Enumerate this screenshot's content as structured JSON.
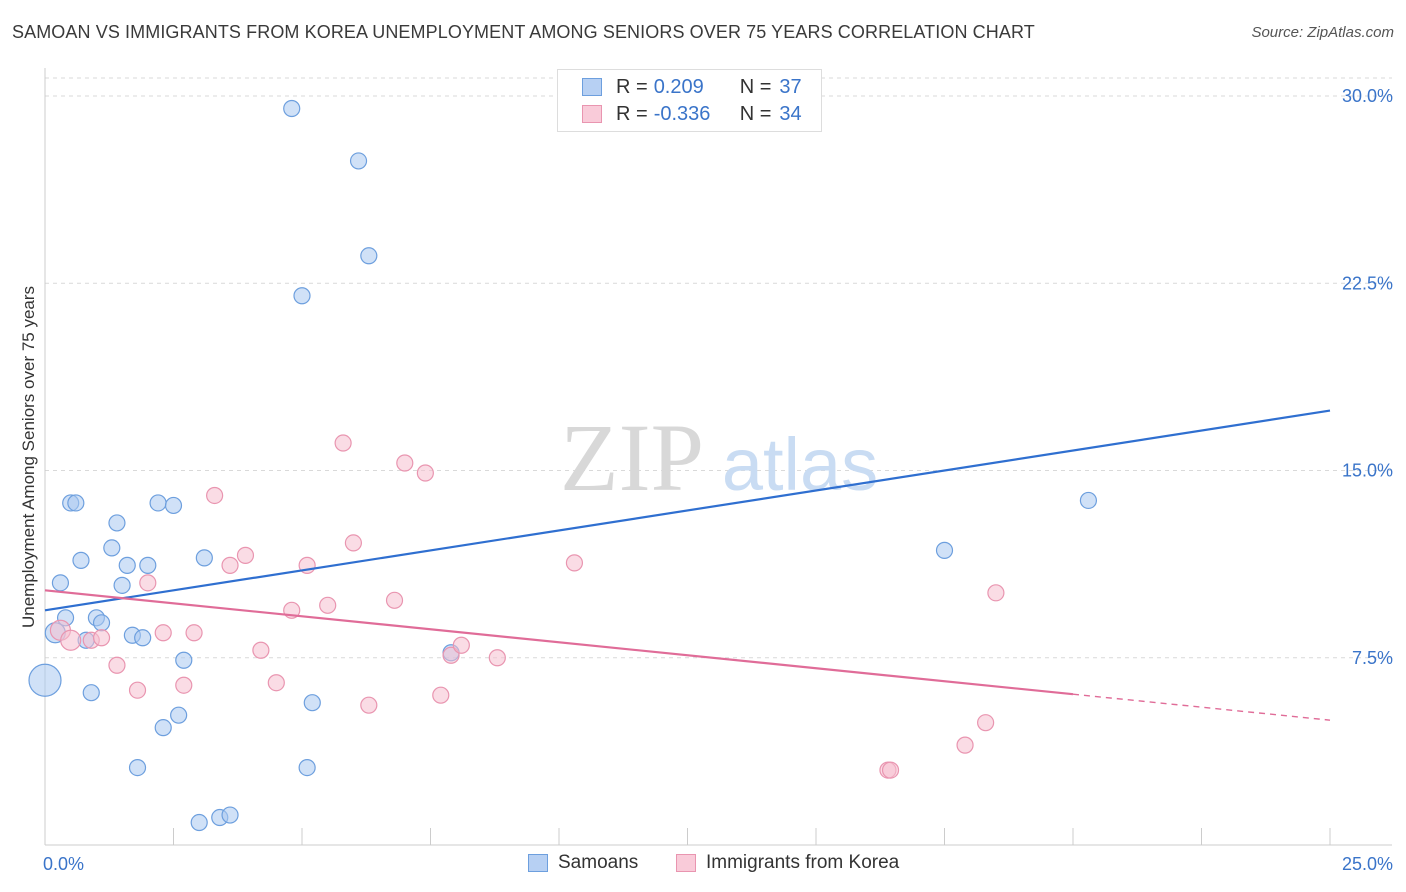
{
  "header": {
    "title": "SAMOAN VS IMMIGRANTS FROM KOREA UNEMPLOYMENT AMONG SENIORS OVER 75 YEARS CORRELATION CHART",
    "source": "Source: ZipAtlas.com"
  },
  "legend": {
    "series1": {
      "r_label": "R =",
      "r_value": "0.209",
      "n_label": "N =",
      "n_value": "37"
    },
    "series2": {
      "r_label": "R =",
      "r_value": "-0.336",
      "n_label": "N =",
      "n_value": "34"
    }
  },
  "bottom_legend": {
    "series1": "Samoans",
    "series2": "Immigrants from Korea"
  },
  "watermark": {
    "zip": "ZIP",
    "atlas": "atlas"
  },
  "colors": {
    "blue_fill": "#a9c8f0",
    "blue_stroke": "#6d9fde",
    "blue_line": "#2f6fd0",
    "pink_fill": "#f6bfd0",
    "pink_stroke": "#e995b0",
    "pink_line": "#e06c98",
    "grid": "#d9d9d9",
    "tick_text": "#3a74c9"
  },
  "chart_data": {
    "type": "scatter",
    "title": "SAMOAN VS IMMIGRANTS FROM KOREA UNEMPLOYMENT AMONG SENIORS OVER 75 YEARS CORRELATION CHART",
    "xlabel": "",
    "ylabel": "Unemployment Among Seniors over 75 years",
    "xlim": [
      0,
      25
    ],
    "ylim": [
      0,
      30
    ],
    "x_tick_labels": [
      {
        "value": 0,
        "label": "0.0%"
      },
      {
        "value": 25,
        "label": "25.0%"
      }
    ],
    "x_minor_ticks": [
      2.5,
      5,
      7.5,
      10,
      12.5,
      15,
      17.5,
      20,
      22.5,
      25
    ],
    "y_ticks": [
      {
        "value": 7.5,
        "label": "7.5%"
      },
      {
        "value": 15,
        "label": "15.0%"
      },
      {
        "value": 22.5,
        "label": "22.5%"
      },
      {
        "value": 30,
        "label": "30.0%"
      }
    ],
    "grid": true,
    "series": [
      {
        "name": "Samoans",
        "color": "blue",
        "r": 0.209,
        "n": 37,
        "trend": {
          "x0": 0,
          "y0": 9.4,
          "x1": 25,
          "y1": 17.4,
          "solid_until": 25
        },
        "points": [
          [
            0.0,
            6.6,
            16
          ],
          [
            0.2,
            8.5,
            10
          ],
          [
            0.3,
            10.5,
            8
          ],
          [
            0.4,
            9.1,
            8
          ],
          [
            0.5,
            13.7,
            8
          ],
          [
            0.6,
            13.7,
            8
          ],
          [
            0.7,
            11.4,
            8
          ],
          [
            0.8,
            8.2,
            8
          ],
          [
            0.9,
            6.1,
            8
          ],
          [
            1.0,
            9.1,
            8
          ],
          [
            1.1,
            8.9,
            8
          ],
          [
            1.3,
            11.9,
            8
          ],
          [
            1.4,
            12.9,
            8
          ],
          [
            1.5,
            10.4,
            8
          ],
          [
            1.6,
            11.2,
            8
          ],
          [
            1.7,
            8.4,
            8
          ],
          [
            1.8,
            3.1,
            8
          ],
          [
            1.9,
            8.3,
            8
          ],
          [
            2.0,
            11.2,
            8
          ],
          [
            2.2,
            13.7,
            8
          ],
          [
            2.3,
            4.7,
            8
          ],
          [
            2.5,
            13.6,
            8
          ],
          [
            2.6,
            5.2,
            8
          ],
          [
            2.7,
            7.4,
            8
          ],
          [
            3.0,
            0.9,
            8
          ],
          [
            3.1,
            11.5,
            8
          ],
          [
            3.4,
            1.1,
            8
          ],
          [
            3.6,
            1.2,
            8
          ],
          [
            4.8,
            29.5,
            8
          ],
          [
            5.0,
            22.0,
            8
          ],
          [
            5.1,
            3.1,
            8
          ],
          [
            5.2,
            5.7,
            8
          ],
          [
            6.1,
            27.4,
            8
          ],
          [
            6.3,
            23.6,
            8
          ],
          [
            7.9,
            7.7,
            8
          ],
          [
            17.5,
            11.8,
            8
          ],
          [
            20.3,
            13.8,
            8
          ]
        ]
      },
      {
        "name": "Immigrants from Korea",
        "color": "pink",
        "r": -0.336,
        "n": 34,
        "trend": {
          "x0": 0,
          "y0": 10.2,
          "x1": 25,
          "y1": 5.0,
          "solid_until": 20
        },
        "points": [
          [
            0.3,
            8.6,
            10
          ],
          [
            0.5,
            8.2,
            10
          ],
          [
            0.9,
            8.2,
            8
          ],
          [
            1.4,
            7.2,
            8
          ],
          [
            1.1,
            8.3,
            8
          ],
          [
            1.8,
            6.2,
            8
          ],
          [
            2.0,
            10.5,
            8
          ],
          [
            2.3,
            8.5,
            8
          ],
          [
            2.7,
            6.4,
            8
          ],
          [
            2.9,
            8.5,
            8
          ],
          [
            3.3,
            14.0,
            8
          ],
          [
            3.6,
            11.2,
            8
          ],
          [
            3.9,
            11.6,
            8
          ],
          [
            4.2,
            7.8,
            8
          ],
          [
            4.5,
            6.5,
            8
          ],
          [
            4.8,
            9.4,
            8
          ],
          [
            5.1,
            11.2,
            8
          ],
          [
            5.5,
            9.6,
            8
          ],
          [
            5.8,
            16.1,
            8
          ],
          [
            6.0,
            12.1,
            8
          ],
          [
            6.3,
            5.6,
            8
          ],
          [
            6.8,
            9.8,
            8
          ],
          [
            7.0,
            15.3,
            8
          ],
          [
            7.4,
            14.9,
            8
          ],
          [
            7.7,
            6.0,
            8
          ],
          [
            7.9,
            7.6,
            8
          ],
          [
            8.1,
            8.0,
            8
          ],
          [
            8.8,
            7.5,
            8
          ],
          [
            10.3,
            11.3,
            8
          ],
          [
            16.4,
            3.0,
            8
          ],
          [
            16.45,
            3.0,
            8
          ],
          [
            17.9,
            4.0,
            8
          ],
          [
            18.3,
            4.9,
            8
          ],
          [
            18.5,
            10.1,
            8
          ]
        ]
      }
    ]
  }
}
